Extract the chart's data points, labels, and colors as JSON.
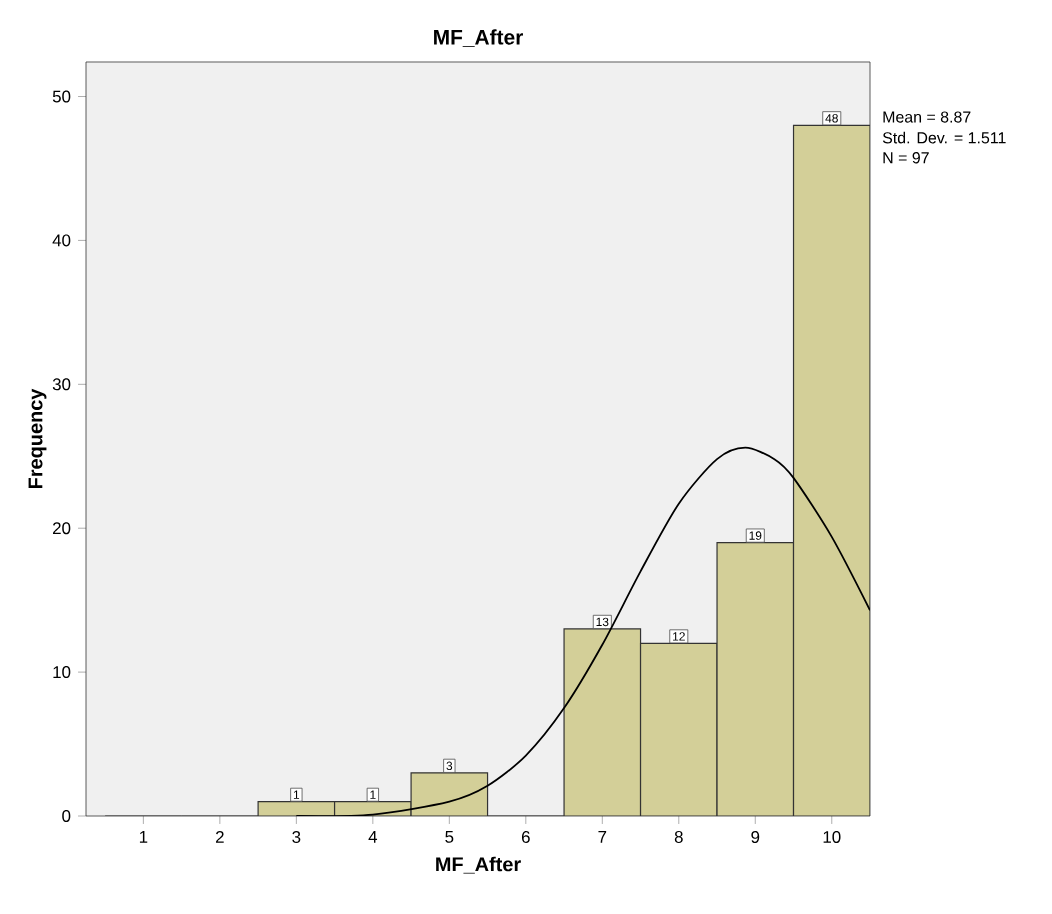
{
  "chart_data": {
    "type": "histogram",
    "title": "MF_After",
    "xlabel": "MF_After",
    "ylabel": "Frequency",
    "bins": [
      0.5,
      1.5,
      2.5,
      3.5,
      4.5,
      5.5,
      6.5,
      7.5,
      8.5,
      9.5,
      10.5
    ],
    "series": [
      {
        "color": "#d3cf98",
        "values": [
          0,
          0,
          1,
          1,
          3,
          0,
          13,
          12,
          19,
          48
        ],
        "value_labels": [
          null,
          null,
          "1",
          "1",
          "3",
          null,
          "13",
          "12",
          "19",
          "48"
        ]
      },
      {
        "type": "line",
        "color": "#000000",
        "marker": "none",
        "x": [
          3,
          4,
          5,
          5.5,
          6,
          6.5,
          7,
          7.5,
          8,
          8.5,
          8.87,
          9.25,
          9.5,
          10,
          10.5
        ],
        "values": [
          0,
          0.1,
          1,
          2.1,
          4.2,
          7.5,
          11.9,
          17,
          21.7,
          24.8,
          25.6,
          24.8,
          23.5,
          19.4,
          14.3
        ]
      }
    ],
    "xlim": [
      0.25,
      10.5
    ],
    "ylim": [
      0,
      52.4
    ],
    "xticks": [
      1,
      2,
      3,
      4,
      5,
      6,
      7,
      8,
      9,
      10
    ],
    "yticks": [
      0,
      10,
      20,
      30,
      40,
      50
    ],
    "grid": false,
    "annotations": [
      "Mean = 8.87",
      "Std. Dev. = 1.511",
      "N = 97"
    ]
  }
}
